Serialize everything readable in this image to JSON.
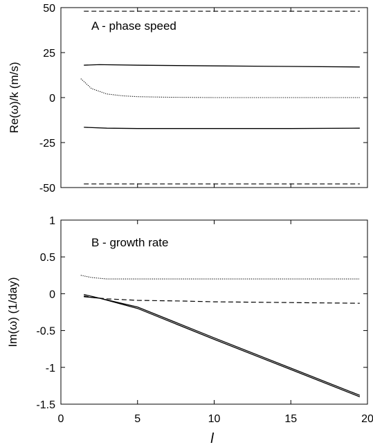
{
  "chart_data": [
    {
      "type": "line",
      "title": "A - phase speed",
      "xlabel": "",
      "ylabel": "Re(ω)/k (m/s)",
      "xlim": [
        0,
        20
      ],
      "ylim": [
        -50,
        50
      ],
      "x_ticks": [
        "0",
        "5",
        "10",
        "15",
        "20"
      ],
      "y_ticks": [
        "50",
        "25",
        "0",
        "-25",
        "-50"
      ],
      "x_ticks_labeled": false,
      "grid": false,
      "series": [
        {
          "style": "dashed",
          "x": [
            1.5,
            5,
            10,
            15,
            19.5
          ],
          "y": [
            48,
            48,
            48,
            48,
            48
          ]
        },
        {
          "style": "solid",
          "x": [
            1.5,
            2.5,
            5,
            10,
            15,
            19.5
          ],
          "y": [
            18,
            18.3,
            18,
            17.6,
            17.3,
            17
          ]
        },
        {
          "style": "dotted",
          "x": [
            1.3,
            2,
            3,
            4,
            5,
            7,
            10,
            15,
            19.5
          ],
          "y": [
            10.5,
            5,
            2,
            1,
            0.5,
            0.2,
            0,
            0,
            0
          ]
        },
        {
          "style": "solid",
          "x": [
            1.5,
            3,
            5,
            8,
            10,
            15,
            19.5
          ],
          "y": [
            -16.5,
            -17,
            -17.2,
            -17.2,
            -17.2,
            -17.2,
            -17
          ]
        },
        {
          "style": "dashed",
          "x": [
            1.5,
            5,
            10,
            15,
            19.5
          ],
          "y": [
            -48,
            -48,
            -48,
            -48,
            -48
          ]
        }
      ]
    },
    {
      "type": "line",
      "title": "B - growth rate",
      "xlabel": "l",
      "ylabel": "Im(ω) (1/day)",
      "xlim": [
        0,
        20
      ],
      "ylim": [
        -1.5,
        1
      ],
      "x_ticks": [
        "0",
        "5",
        "10",
        "15",
        "20"
      ],
      "y_ticks": [
        "1",
        "0.5",
        "0",
        "-0.5",
        "-1",
        "-1.5"
      ],
      "x_ticks_labeled": true,
      "grid": false,
      "series": [
        {
          "style": "dotted",
          "x": [
            1.3,
            2,
            3,
            5,
            10,
            15,
            19.5
          ],
          "y": [
            0.25,
            0.22,
            0.2,
            0.2,
            0.2,
            0.2,
            0.2
          ]
        },
        {
          "style": "dashed",
          "x": [
            1.5,
            2,
            3,
            5,
            8,
            10,
            15,
            19.5
          ],
          "y": [
            -0.03,
            -0.05,
            -0.07,
            -0.09,
            -0.1,
            -0.11,
            -0.12,
            -0.13
          ]
        },
        {
          "style": "solid",
          "x": [
            1.5,
            2.5,
            5,
            10,
            15,
            19.5
          ],
          "y": [
            -0.04,
            -0.06,
            -0.18,
            -0.6,
            -1.01,
            -1.38
          ]
        },
        {
          "style": "solid",
          "x": [
            1.5,
            2.5,
            5,
            10,
            15,
            19.5
          ],
          "y": [
            -0.01,
            -0.06,
            -0.2,
            -0.62,
            -1.03,
            -1.4
          ]
        }
      ]
    }
  ]
}
